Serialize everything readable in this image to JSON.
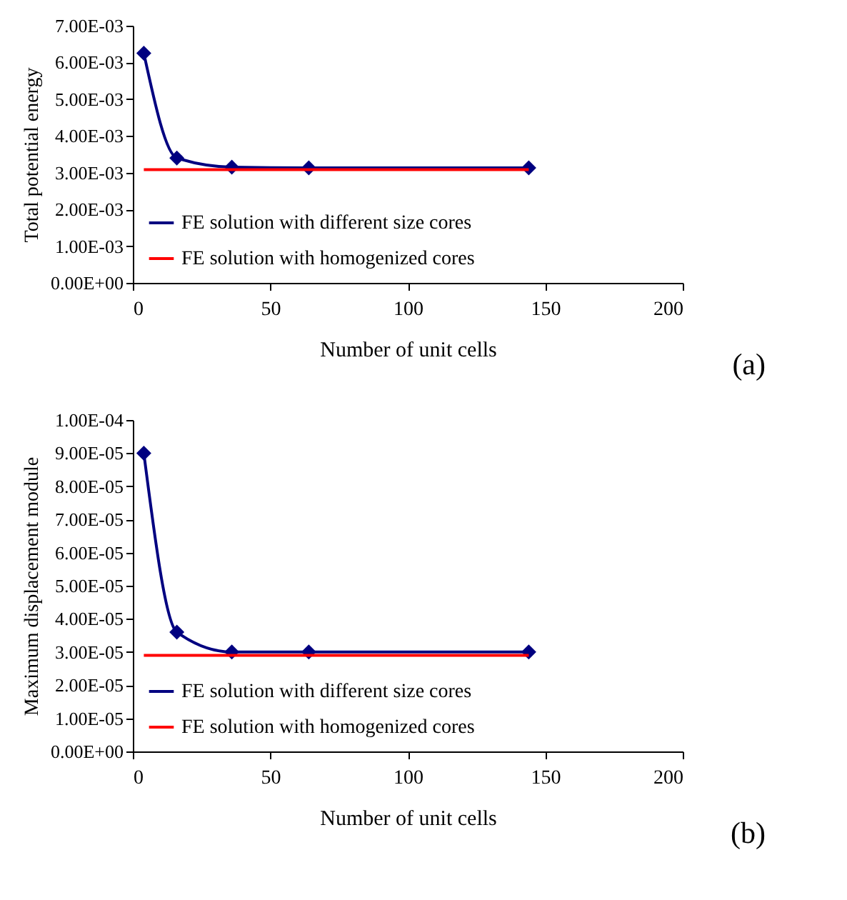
{
  "chart_data": [
    {
      "type": "line",
      "xlabel": "Number of unit cells",
      "ylabel": "Total potential energy",
      "xlim": [
        0,
        200
      ],
      "xticks": [
        0,
        50,
        100,
        150,
        200
      ],
      "ylim": [
        0,
        0.007
      ],
      "yticks": [
        {
          "value": 0,
          "label": "0.00E+00"
        },
        {
          "value": 0.001,
          "label": "1.00E-03"
        },
        {
          "value": 0.002,
          "label": "2.00E-03"
        },
        {
          "value": 0.003,
          "label": "3.00E-03"
        },
        {
          "value": 0.004,
          "label": "4.00E-03"
        },
        {
          "value": 0.005,
          "label": "5.00E-03"
        },
        {
          "value": 0.006,
          "label": "6.00E-03"
        },
        {
          "value": 0.007,
          "label": "7.00E-03"
        }
      ],
      "grid": false,
      "legend": "bottom left",
      "annotations": [
        "(a)"
      ],
      "series": [
        {
          "name": "FE solution with different size cores",
          "color": "#000080",
          "marker": "diamond",
          "x": [
            4,
            16,
            36,
            64,
            144
          ],
          "values": [
            0.00625,
            0.0034,
            0.00315,
            0.00313,
            0.00313
          ]
        },
        {
          "name": "FE solution with homogenized cores",
          "color": "#ff0000",
          "marker": "none",
          "x": [
            4,
            144
          ],
          "values": [
            0.00308,
            0.00308
          ]
        }
      ]
    },
    {
      "type": "line",
      "xlabel": "Number of unit cells",
      "ylabel": "Maximum displacement module",
      "xlim": [
        0,
        200
      ],
      "xticks": [
        0,
        50,
        100,
        150,
        200
      ],
      "ylim": [
        0,
        0.0001
      ],
      "yticks": [
        {
          "value": 0,
          "label": "0.00E+00"
        },
        {
          "value": 1e-05,
          "label": "1.00E-05"
        },
        {
          "value": 2e-05,
          "label": "2.00E-05"
        },
        {
          "value": 3e-05,
          "label": "3.00E-05"
        },
        {
          "value": 4e-05,
          "label": "4.00E-05"
        },
        {
          "value": 5e-05,
          "label": "5.00E-05"
        },
        {
          "value": 6e-05,
          "label": "6.00E-05"
        },
        {
          "value": 7e-05,
          "label": "7.00E-05"
        },
        {
          "value": 8e-05,
          "label": "8.00E-05"
        },
        {
          "value": 9e-05,
          "label": "9.00E-05"
        },
        {
          "value": 0.0001,
          "label": "1.00E-04"
        }
      ],
      "grid": false,
      "legend": "bottom left",
      "annotations": [
        "(b)"
      ],
      "series": [
        {
          "name": "FE solution with different size cores",
          "color": "#000080",
          "marker": "diamond",
          "x": [
            4,
            16,
            36,
            64,
            144
          ],
          "values": [
            9e-05,
            3.6e-05,
            3e-05,
            3e-05,
            3e-05
          ]
        },
        {
          "name": "FE solution with homogenized cores",
          "color": "#ff0000",
          "marker": "none",
          "x": [
            4,
            144
          ],
          "values": [
            2.9e-05,
            2.9e-05
          ]
        }
      ]
    }
  ]
}
